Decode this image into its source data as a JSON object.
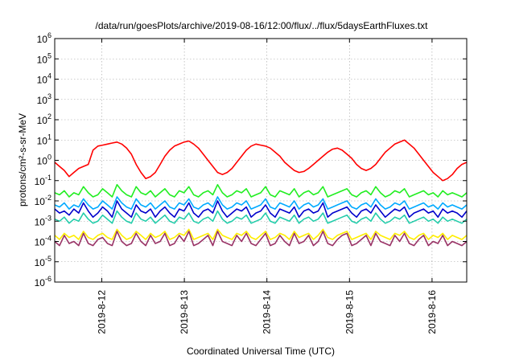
{
  "chart_data": {
    "type": "line",
    "title": "/data/run/goesPlots/archive/2019-08-16/12:00/flux/../flux/5daysEarthFluxes.txt",
    "xlabel": "Coordinated Universal Time (UTC)",
    "ylabel": "protons/cm²-s-sr-MeV",
    "y_scale": "log",
    "ylim": [
      1e-06,
      1000000.0
    ],
    "y_ticks": [
      {
        "value": -6,
        "base": "10",
        "exp": "-6"
      },
      {
        "value": -5,
        "base": "10",
        "exp": "-5"
      },
      {
        "value": -4,
        "base": "10",
        "exp": "-4"
      },
      {
        "value": -3,
        "base": "10",
        "exp": "-3"
      },
      {
        "value": -2,
        "base": "10",
        "exp": "-2"
      },
      {
        "value": -1,
        "base": "10",
        "exp": "-1"
      },
      {
        "value": 0,
        "base": "10",
        "exp": "0"
      },
      {
        "value": 1,
        "base": "10",
        "exp": "1"
      },
      {
        "value": 2,
        "base": "10",
        "exp": "2"
      },
      {
        "value": 3,
        "base": "10",
        "exp": "3"
      },
      {
        "value": 4,
        "base": "10",
        "exp": "4"
      },
      {
        "value": 5,
        "base": "10",
        "exp": "5"
      },
      {
        "value": 6,
        "base": "10",
        "exp": "6"
      }
    ],
    "x_range_days": [
      2019.08111,
      2019.08165
    ],
    "x_ticks": [
      "2019-8-12",
      "2019-8-13",
      "2019-8-14",
      "2019-8-15",
      "2019-8-16"
    ],
    "grid": true,
    "legend": "none",
    "series": [
      {
        "color": "#ff0000",
        "log_values": [
          -0.1,
          -0.3,
          -0.5,
          -0.8,
          -0.6,
          -0.4,
          -0.3,
          -0.2,
          0.5,
          0.7,
          0.75,
          0.8,
          0.85,
          0.9,
          0.8,
          0.6,
          0.3,
          -0.2,
          -0.6,
          -0.9,
          -0.8,
          -0.6,
          -0.2,
          0.2,
          0.5,
          0.7,
          0.8,
          0.9,
          0.95,
          0.8,
          0.6,
          0.3,
          0,
          -0.3,
          -0.6,
          -0.7,
          -0.6,
          -0.4,
          -0.1,
          0.2,
          0.5,
          0.7,
          0.8,
          0.75,
          0.7,
          0.6,
          0.4,
          0.2,
          -0.1,
          -0.3,
          -0.5,
          -0.6,
          -0.55,
          -0.4,
          -0.2,
          0,
          0.2,
          0.4,
          0.55,
          0.6,
          0.5,
          0.3,
          0.1,
          -0.2,
          -0.4,
          -0.5,
          -0.4,
          -0.2,
          0.1,
          0.4,
          0.6,
          0.8,
          0.9,
          1.0,
          0.8,
          0.6,
          0.3,
          0,
          -0.3,
          -0.6,
          -0.8,
          -1.0,
          -0.9,
          -0.7,
          -0.4,
          -0.2,
          -0.1
        ]
      },
      {
        "color": "#22ee22",
        "log_values": [
          -1.6,
          -1.7,
          -1.5,
          -1.8,
          -1.6,
          -1.7,
          -1.3,
          -1.6,
          -1.8,
          -1.7,
          -1.4,
          -1.6,
          -1.8,
          -1.2,
          -1.5,
          -1.7,
          -1.8,
          -1.3,
          -1.6,
          -1.7,
          -1.5,
          -1.8,
          -1.6,
          -1.4,
          -1.7,
          -1.8,
          -1.5,
          -1.6,
          -1.3,
          -1.7,
          -1.8,
          -1.6,
          -1.5,
          -1.7,
          -1.2,
          -1.6,
          -1.8,
          -1.7,
          -1.5,
          -1.6,
          -1.4,
          -1.8,
          -1.7,
          -1.6,
          -1.3,
          -1.7,
          -1.8,
          -1.5,
          -1.6,
          -1.7,
          -1.4,
          -1.8,
          -1.6,
          -1.5,
          -1.7,
          -1.6,
          -1.3,
          -1.8,
          -1.7,
          -1.6,
          -1.5,
          -1.4,
          -1.7,
          -1.8,
          -1.6,
          -1.5,
          -1.7,
          -1.3,
          -1.6,
          -1.8,
          -1.7,
          -1.5,
          -1.6,
          -1.4,
          -1.8,
          -1.7,
          -1.6,
          -1.5,
          -1.7,
          -1.6,
          -1.8,
          -1.5,
          -1.7,
          -1.6,
          -1.7,
          -1.8,
          -1.6
        ]
      },
      {
        "color": "#00aaff",
        "log_values": [
          -2.2,
          -2.3,
          -2.1,
          -2.4,
          -2.2,
          -2.3,
          -1.9,
          -2.2,
          -2.4,
          -2.3,
          -2.0,
          -2.2,
          -2.4,
          -1.8,
          -2.1,
          -2.3,
          -2.4,
          -1.9,
          -2.2,
          -2.3,
          -2.1,
          -2.4,
          -2.2,
          -2.0,
          -2.3,
          -2.4,
          -2.1,
          -2.2,
          -1.9,
          -2.3,
          -2.4,
          -2.2,
          -2.1,
          -2.3,
          -1.8,
          -2.2,
          -2.4,
          -2.3,
          -2.1,
          -2.2,
          -2.0,
          -2.4,
          -2.3,
          -2.2,
          -1.9,
          -2.3,
          -2.4,
          -2.1,
          -2.2,
          -2.3,
          -2.0,
          -2.4,
          -2.2,
          -2.1,
          -2.3,
          -2.2,
          -1.9,
          -2.4,
          -2.3,
          -2.2,
          -2.1,
          -2.0,
          -2.3,
          -2.4,
          -2.2,
          -2.1,
          -2.3,
          -1.9,
          -2.2,
          -2.4,
          -2.3,
          -2.1,
          -2.2,
          -2.0,
          -2.4,
          -2.3,
          -2.2,
          -2.1,
          -2.3,
          -2.2,
          -2.4,
          -2.1,
          -2.3,
          -2.2,
          -2.3,
          -2.4,
          -2.2
        ]
      },
      {
        "color": "#0000cc",
        "log_values": [
          -2.4,
          -2.6,
          -2.5,
          -2.7,
          -2.4,
          -2.6,
          -2.1,
          -2.5,
          -2.8,
          -2.6,
          -2.3,
          -2.5,
          -2.8,
          -2.0,
          -2.4,
          -2.6,
          -2.8,
          -2.2,
          -2.5,
          -2.6,
          -2.4,
          -2.8,
          -2.5,
          -2.3,
          -2.6,
          -2.8,
          -2.4,
          -2.5,
          -2.1,
          -2.6,
          -2.8,
          -2.5,
          -2.4,
          -2.6,
          -2.0,
          -2.5,
          -2.8,
          -2.6,
          -2.4,
          -2.5,
          -2.3,
          -2.8,
          -2.6,
          -2.5,
          -2.2,
          -2.6,
          -2.8,
          -2.4,
          -2.5,
          -2.6,
          -2.3,
          -2.8,
          -2.5,
          -2.4,
          -2.6,
          -2.5,
          -2.1,
          -2.8,
          -2.6,
          -2.5,
          -2.4,
          -2.3,
          -2.6,
          -2.8,
          -2.5,
          -2.4,
          -2.6,
          -2.2,
          -2.5,
          -2.8,
          -2.6,
          -2.4,
          -2.5,
          -2.3,
          -2.8,
          -2.6,
          -2.5,
          -2.4,
          -2.6,
          -2.5,
          -2.8,
          -2.4,
          -2.6,
          -2.5,
          -2.6,
          -2.8,
          -2.5
        ]
      },
      {
        "color": "#22ccaa",
        "log_values": [
          -2.9,
          -3.0,
          -2.8,
          -3.1,
          -2.9,
          -3.0,
          -2.6,
          -2.9,
          -3.1,
          -3.0,
          -2.7,
          -2.9,
          -3.1,
          -2.5,
          -2.8,
          -3.0,
          -3.1,
          -2.6,
          -2.9,
          -3.0,
          -2.8,
          -3.1,
          -2.9,
          -2.7,
          -3.0,
          -3.1,
          -2.8,
          -2.9,
          -2.6,
          -3.0,
          -3.1,
          -2.9,
          -2.8,
          -3.0,
          -2.5,
          -2.9,
          -3.1,
          -3.0,
          -2.8,
          -2.9,
          -2.7,
          -3.1,
          -3.0,
          -2.9,
          -2.6,
          -3.0,
          -3.1,
          -2.8,
          -2.9,
          -3.0,
          -2.7,
          -3.1,
          -2.9,
          -2.8,
          -3.0,
          -2.9,
          -2.6,
          -3.1,
          -3.0,
          -2.9,
          -2.8,
          -2.7,
          -3.0,
          -3.1,
          -2.9,
          -2.8,
          -3.0,
          -2.6,
          -2.9,
          -3.1,
          -3.0,
          -2.8,
          -2.9,
          -2.7,
          -3.1,
          -3.0,
          -2.9,
          -2.8,
          -3.0,
          -2.9,
          -3.1,
          -2.8,
          -3.0,
          -2.9,
          -3.0,
          -3.1,
          -2.9
        ]
      },
      {
        "color": "#ffee00",
        "log_values": [
          -3.7,
          -3.9,
          -3.6,
          -3.8,
          -3.7,
          -3.9,
          -3.5,
          -3.8,
          -3.9,
          -3.7,
          -3.6,
          -3.8,
          -3.9,
          -3.4,
          -3.7,
          -3.9,
          -3.8,
          -3.5,
          -3.7,
          -3.9,
          -3.6,
          -3.8,
          -3.7,
          -3.5,
          -3.9,
          -3.8,
          -3.6,
          -3.7,
          -3.4,
          -3.9,
          -3.8,
          -3.7,
          -3.6,
          -3.9,
          -3.4,
          -3.7,
          -3.8,
          -3.9,
          -3.6,
          -3.7,
          -3.5,
          -3.8,
          -3.9,
          -3.7,
          -3.5,
          -3.9,
          -3.8,
          -3.6,
          -3.7,
          -3.9,
          -3.5,
          -3.8,
          -3.7,
          -3.6,
          -3.9,
          -3.7,
          -3.4,
          -3.8,
          -3.9,
          -3.7,
          -3.6,
          -3.5,
          -3.9,
          -3.8,
          -3.7,
          -3.6,
          -3.9,
          -3.5,
          -3.7,
          -3.8,
          -3.9,
          -3.6,
          -3.7,
          -3.5,
          -3.8,
          -3.9,
          -3.7,
          -3.6,
          -3.9,
          -3.7,
          -3.8,
          -3.6,
          -3.9,
          -3.7,
          -3.8,
          -3.9,
          -3.7
        ]
      },
      {
        "color": "#993366",
        "log_values": [
          -4.0,
          -4.2,
          -3.7,
          -4.1,
          -4.0,
          -4.2,
          -3.6,
          -4.1,
          -4.2,
          -3.9,
          -3.8,
          -4.1,
          -4.2,
          -3.5,
          -4.0,
          -4.2,
          -4.1,
          -3.6,
          -4.0,
          -4.2,
          -3.7,
          -4.1,
          -4.0,
          -3.6,
          -4.2,
          -4.1,
          -3.7,
          -4.0,
          -3.5,
          -4.2,
          -4.1,
          -3.9,
          -3.7,
          -4.2,
          -3.5,
          -4.0,
          -4.1,
          -4.2,
          -3.7,
          -4.0,
          -3.6,
          -4.1,
          -4.2,
          -3.9,
          -3.6,
          -4.2,
          -4.1,
          -3.7,
          -4.0,
          -4.2,
          -3.6,
          -4.1,
          -4.0,
          -3.7,
          -4.2,
          -4.0,
          -3.5,
          -4.1,
          -4.2,
          -3.9,
          -3.7,
          -3.6,
          -4.2,
          -4.1,
          -3.9,
          -3.7,
          -4.2,
          -3.6,
          -4.0,
          -4.1,
          -4.2,
          -3.7,
          -4.0,
          -3.6,
          -4.1,
          -4.2,
          -3.9,
          -3.7,
          -4.2,
          -4.0,
          -4.1,
          -3.7,
          -4.2,
          -4.0,
          -4.1,
          -4.2,
          -4.0
        ]
      }
    ]
  }
}
